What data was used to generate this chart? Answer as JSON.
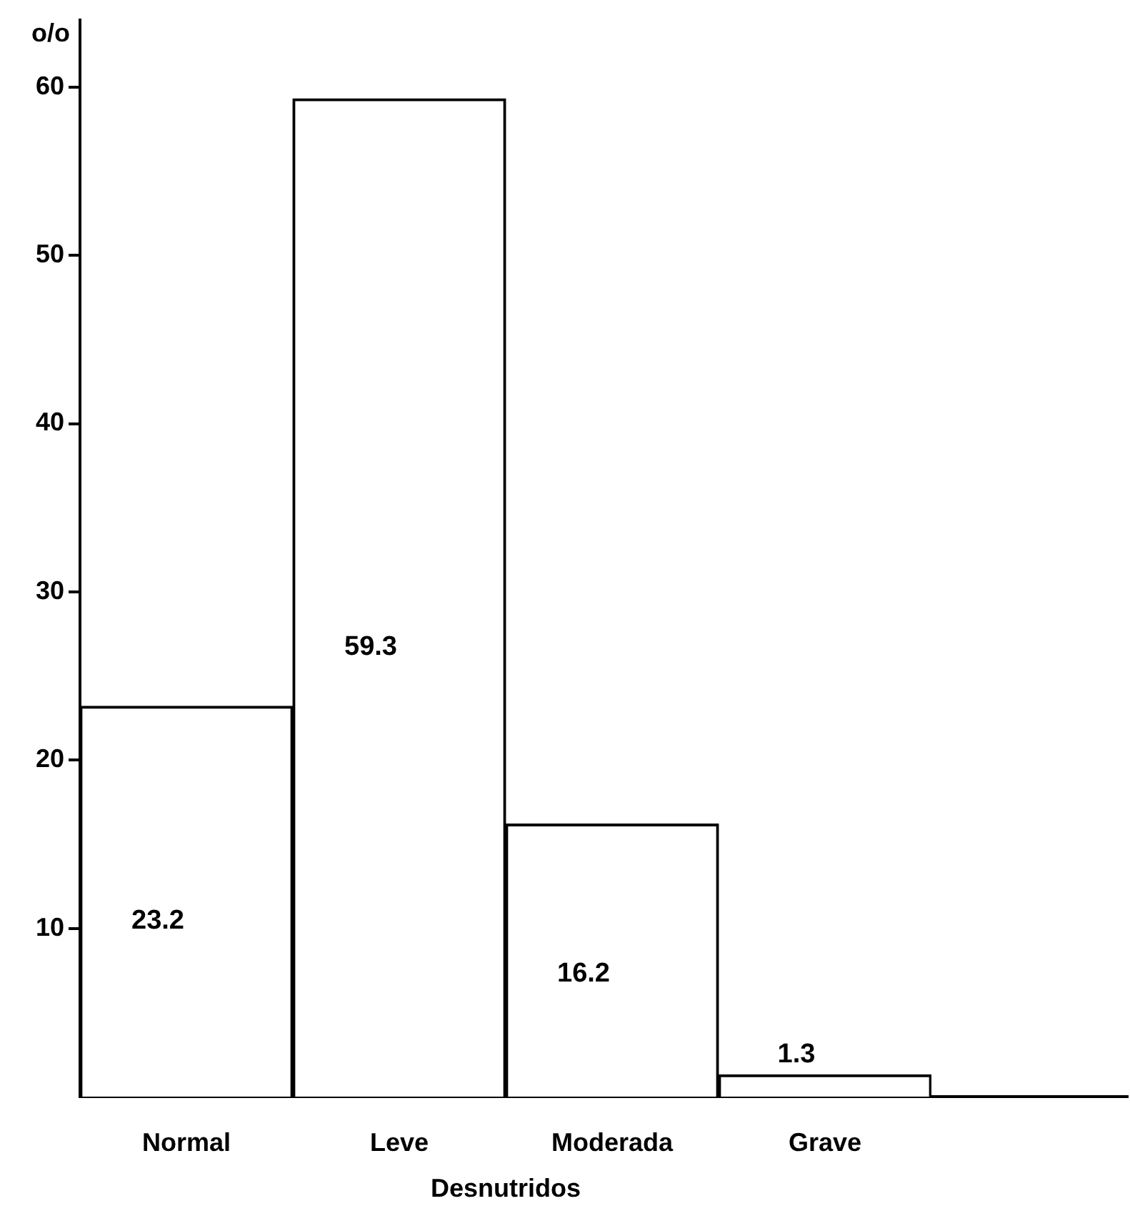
{
  "chart_data": {
    "type": "bar",
    "ylabel": "o/o",
    "xlabel": "Desnutridos",
    "categories": [
      "Normal",
      "Leve",
      "Moderada",
      "Grave"
    ],
    "values": [
      23.2,
      59.3,
      16.2,
      1.3
    ],
    "color": "#ffffff",
    "ylim": [
      0,
      64
    ],
    "yticks": [
      10,
      20,
      30,
      40,
      50,
      60
    ],
    "grid": false,
    "legend": false,
    "data_labels": true
  }
}
